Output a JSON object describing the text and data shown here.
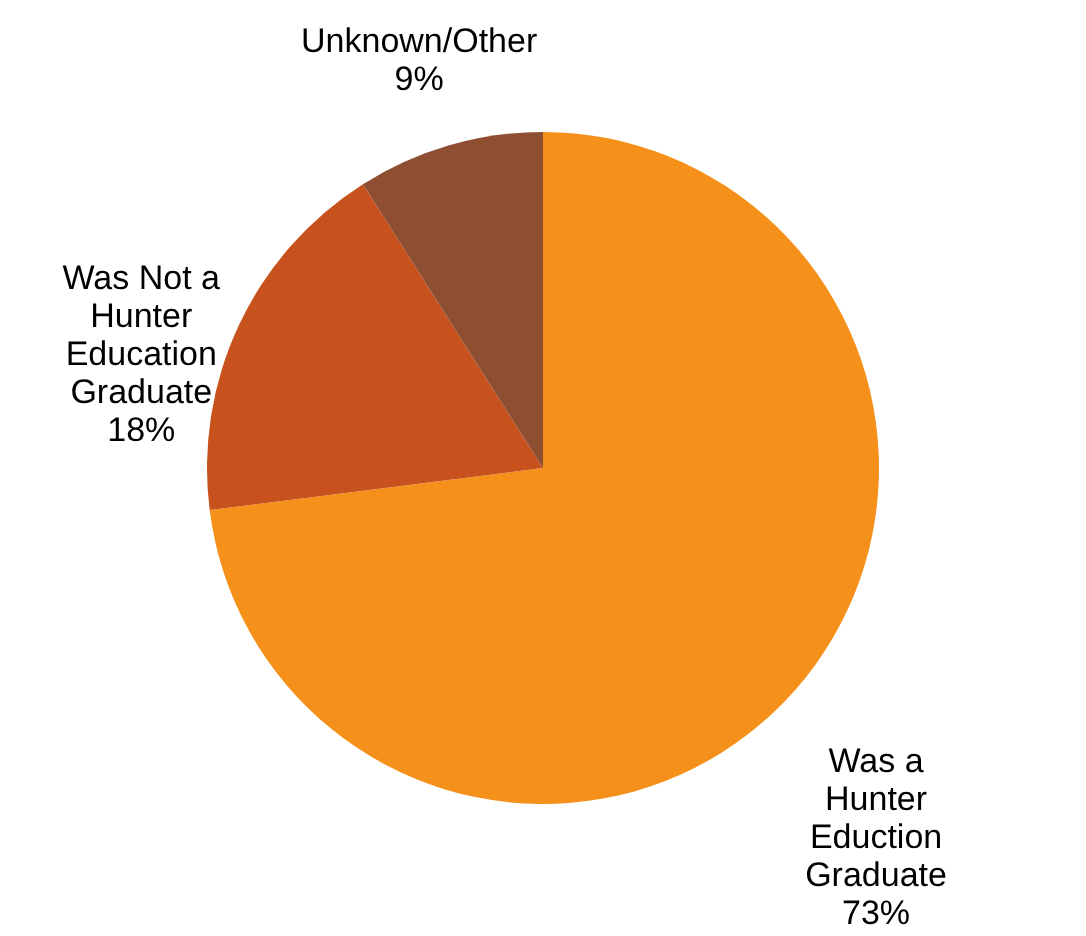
{
  "chart_data": {
    "type": "pie",
    "categories": [
      "Was a Hunter Eduction Graduate",
      "Was Not a Hunter Education Graduate",
      "Unknown/Other"
    ],
    "values": [
      73,
      18,
      9
    ],
    "value_labels": [
      "73%",
      "18%",
      "9%"
    ],
    "colors": [
      "#f5901a",
      "#c8521e",
      "#8e4e32"
    ],
    "legend": false
  }
}
